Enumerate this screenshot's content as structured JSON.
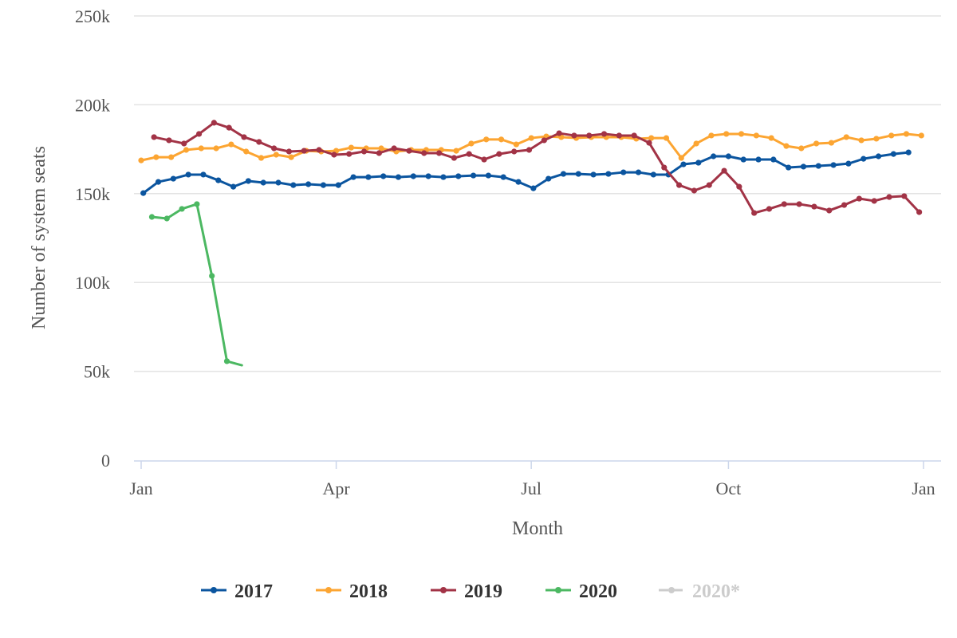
{
  "chart_data": {
    "type": "line",
    "title": "",
    "xlabel": "Month",
    "ylabel": "Number of system seats",
    "x_unit": "day of year",
    "xlim": [
      0,
      365
    ],
    "ylim": [
      0,
      250000
    ],
    "grid": true,
    "legend_position": "bottom",
    "y_ticks": [
      {
        "value": 0,
        "label": "0"
      },
      {
        "value": 50000,
        "label": "50k"
      },
      {
        "value": 100000,
        "label": "100k"
      },
      {
        "value": 150000,
        "label": "150k"
      },
      {
        "value": 200000,
        "label": "200k"
      },
      {
        "value": 250000,
        "label": "250k"
      }
    ],
    "x_ticks": [
      {
        "value": 0,
        "label": "Jan"
      },
      {
        "value": 91,
        "label": "Apr"
      },
      {
        "value": 182,
        "label": "Jul"
      },
      {
        "value": 274,
        "label": "Oct"
      },
      {
        "value": 365,
        "label": "Jan"
      }
    ],
    "series": [
      {
        "name": "2017",
        "color": "#0b559f",
        "visible": true,
        "start_day": 1,
        "step_days": 7,
        "values": [
          150300,
          156600,
          158400,
          160700,
          160700,
          157500,
          153900,
          157100,
          156200,
          156200,
          154800,
          155300,
          154800,
          154800,
          159300,
          159300,
          159800,
          159300,
          159800,
          159800,
          159300,
          159800,
          160200,
          160200,
          159300,
          156600,
          153000,
          158400,
          161100,
          161100,
          160700,
          161100,
          162000,
          162000,
          160700,
          160700,
          166500,
          167400,
          171000,
          171000,
          169200,
          169200,
          169200,
          164700,
          165200,
          165600,
          166100,
          166900,
          169600,
          171000,
          172300,
          173200
        ]
      },
      {
        "name": "2018",
        "color": "#fca532",
        "visible": true,
        "start_day": 0,
        "step_days": 7,
        "values": [
          168700,
          170500,
          170500,
          174600,
          175500,
          175500,
          177700,
          173700,
          170100,
          171900,
          170500,
          174100,
          173700,
          174100,
          175900,
          175500,
          175500,
          173700,
          174600,
          174600,
          174600,
          174100,
          178200,
          180500,
          180500,
          177700,
          181300,
          182200,
          181800,
          181300,
          181800,
          181800,
          181800,
          180900,
          181300,
          181300,
          170100,
          178200,
          182700,
          183600,
          183600,
          182700,
          181300,
          176800,
          175500,
          178200,
          178600,
          181800,
          180000,
          180900,
          182700,
          183600,
          182700
        ]
      },
      {
        "name": "2019",
        "color": "#a23346",
        "visible": true,
        "start_day": 6,
        "step_days": 7,
        "values": [
          181800,
          180000,
          178200,
          183600,
          189900,
          187100,
          181800,
          179100,
          175500,
          173700,
          174100,
          174600,
          171900,
          172300,
          173700,
          172800,
          175500,
          174100,
          172800,
          172800,
          170100,
          172300,
          169200,
          172300,
          173700,
          174600,
          180000,
          184000,
          182700,
          182700,
          183600,
          182700,
          182700,
          178600,
          164700,
          154800,
          151700,
          154800,
          162900,
          153900,
          139100,
          141400,
          144100,
          144100,
          142700,
          140500,
          143600,
          147200,
          145900,
          148100,
          148600,
          139600
        ]
      },
      {
        "name": "2020",
        "color": "#4cb862",
        "visible": true,
        "start_day": 5,
        "step_days": 7,
        "values": [
          136900,
          136000,
          141400,
          144100,
          103700,
          55700,
          53400
        ]
      },
      {
        "name": "2020*",
        "color": "#cccccc",
        "visible": false,
        "values": []
      }
    ]
  }
}
